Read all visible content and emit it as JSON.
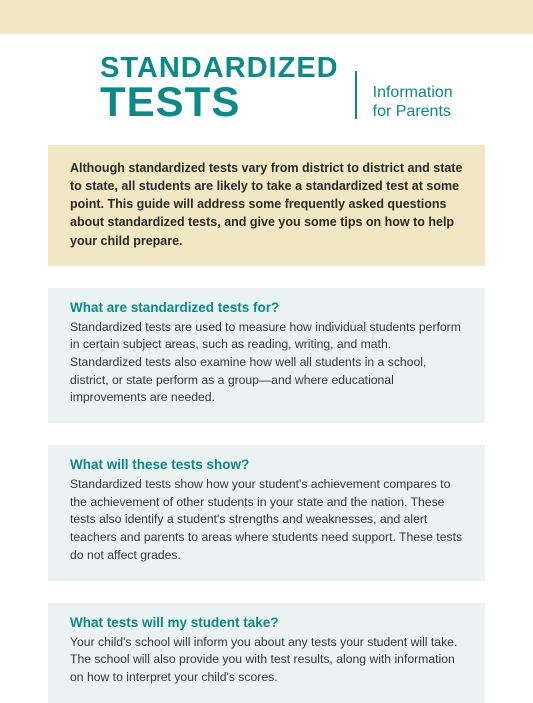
{
  "colors": {
    "teal": "#0c8a8a",
    "cream": "#f1e7c3",
    "paleTeal": "#eaf2f2",
    "text": "#363636",
    "introText": "#2a2a2a",
    "white": "#ffffff"
  },
  "typography": {
    "title_line1_fontsize": 29,
    "title_line2_fontsize": 42,
    "subtitle_fontsize": 16,
    "intro_fontsize": 12.5,
    "heading_fontsize": 13.5,
    "body_fontsize": 12.2
  },
  "header": {
    "title_line1": "STANDARDIZED",
    "title_line2": "TESTS",
    "subtitle_line1": "Information",
    "subtitle_line2": "for Parents"
  },
  "intro": "Although standardized tests vary from district to district and state to state, all students are likely to take a standardized test at some point. This guide will address some frequently asked questions about standardized tests, and give you some tips on how to help your child prepare.",
  "sections": [
    {
      "heading": "What are standardized tests for?",
      "body": "Standardized tests are used to measure how individual students perform in certain subject areas, such as reading, writing, and math. Standardized tests also examine how well all students in a school, district, or state perform as a group—and where educational improvements are needed."
    },
    {
      "heading": "What will these tests show?",
      "body": "Standardized tests show how your student's achievement compares to the achievement of other students in your state and the nation. These tests also identify a student's strengths and weaknesses, and alert teachers and parents to areas where students need support. These tests do not affect grades."
    },
    {
      "heading": "What tests will my student take?",
      "body": "Your child's school will inform you about any tests your student will take. The school will also provide you with test results, along with information on how to interpret your child's scores."
    }
  ]
}
